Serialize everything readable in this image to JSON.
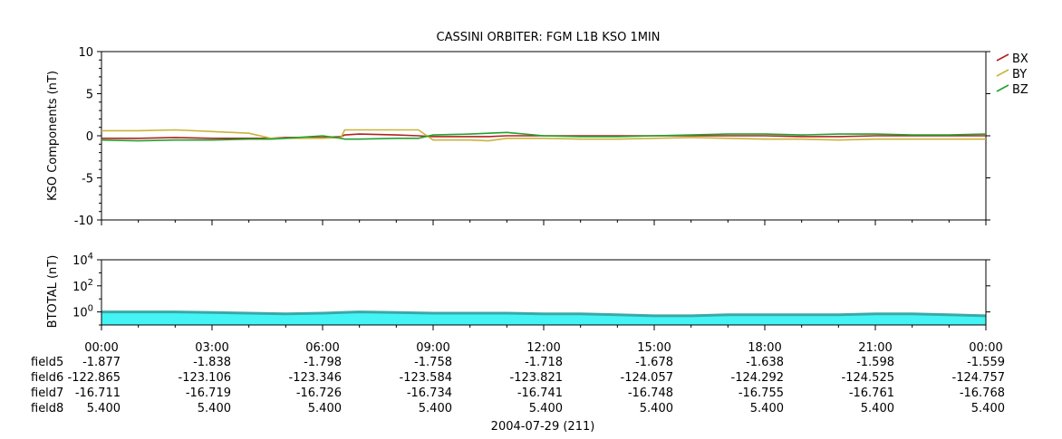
{
  "title": "CASSINI ORBITER: FGM L1B KSO 1MIN",
  "colors": {
    "BX": "#b22222",
    "BY": "#c8b43c",
    "BZ": "#22a22e",
    "btotal_fill": "#44f4f4",
    "btotal_line": "#3aa8a8"
  },
  "chart_data": [
    {
      "type": "line",
      "ylabel": "KSO Components (nT)",
      "ylim": [
        -10,
        10
      ],
      "yticks": [
        "10",
        "5",
        "0",
        "-5",
        "-10"
      ],
      "legend": {
        "placement": "right-top",
        "entries": [
          "BX",
          "BY",
          "BZ"
        ]
      },
      "x_hours": [
        0,
        1,
        2,
        3,
        4,
        4.6,
        5,
        6,
        6.5,
        6.6,
        7,
        8,
        8.6,
        9,
        10,
        10.5,
        11,
        12,
        13,
        14,
        15,
        16,
        17,
        18,
        19,
        20,
        21,
        22,
        23,
        24
      ],
      "series": [
        {
          "name": "BX",
          "values": [
            -0.3,
            -0.3,
            -0.2,
            -0.3,
            -0.3,
            -0.3,
            -0.2,
            -0.2,
            -0.1,
            0.1,
            0.2,
            0.1,
            0.0,
            -0.1,
            -0.1,
            -0.1,
            0.0,
            0.0,
            0.0,
            0.0,
            0.0,
            0.0,
            0.0,
            0.0,
            -0.1,
            -0.1,
            0.0,
            0.0,
            0.0,
            0.0
          ]
        },
        {
          "name": "BY",
          "values": [
            0.6,
            0.6,
            0.7,
            0.5,
            0.3,
            -0.3,
            -0.3,
            -0.3,
            -0.2,
            0.7,
            0.7,
            0.7,
            0.7,
            -0.5,
            -0.5,
            -0.6,
            -0.3,
            -0.3,
            -0.4,
            -0.4,
            -0.3,
            -0.2,
            -0.3,
            -0.4,
            -0.4,
            -0.5,
            -0.4,
            -0.4,
            -0.4,
            -0.4
          ]
        },
        {
          "name": "BZ",
          "values": [
            -0.5,
            -0.6,
            -0.5,
            -0.5,
            -0.4,
            -0.4,
            -0.3,
            0.0,
            -0.3,
            -0.4,
            -0.4,
            -0.3,
            -0.3,
            0.1,
            0.2,
            0.3,
            0.4,
            0.0,
            -0.1,
            -0.1,
            0.0,
            0.1,
            0.2,
            0.2,
            0.1,
            0.2,
            0.2,
            0.1,
            0.1,
            0.2
          ]
        }
      ]
    },
    {
      "type": "area",
      "ylabel": "BTOTAL (nT)",
      "yscale": "log",
      "ylim": [
        0.1,
        10000
      ],
      "yticks": [
        {
          "base": "10",
          "exp": "4"
        },
        {
          "base": "10",
          "exp": "2"
        },
        {
          "base": "10",
          "exp": "0"
        }
      ],
      "x_hours": [
        0,
        1,
        2,
        3,
        4,
        5,
        6,
        7,
        8,
        9,
        10,
        11,
        12,
        13,
        14,
        15,
        16,
        17,
        18,
        19,
        20,
        21,
        22,
        23,
        24
      ],
      "series": [
        {
          "name": "BTOTAL",
          "values": [
            1.0,
            1.0,
            1.0,
            0.9,
            0.8,
            0.7,
            0.8,
            1.0,
            0.9,
            0.8,
            0.8,
            0.8,
            0.7,
            0.7,
            0.6,
            0.5,
            0.5,
            0.6,
            0.6,
            0.6,
            0.6,
            0.7,
            0.7,
            0.6,
            0.5
          ]
        }
      ]
    }
  ],
  "xaxis": {
    "ticks": [
      "00:00",
      "03:00",
      "06:00",
      "09:00",
      "12:00",
      "15:00",
      "18:00",
      "21:00",
      "00:00"
    ],
    "rows": [
      {
        "label": "field5",
        "values": [
          "-1.877",
          "-1.838",
          "-1.798",
          "-1.758",
          "-1.718",
          "-1.678",
          "-1.638",
          "-1.598",
          "-1.559"
        ]
      },
      {
        "label": "field6",
        "values": [
          "-122.865",
          "-123.106",
          "-123.346",
          "-123.584",
          "-123.821",
          "-124.057",
          "-124.292",
          "-124.525",
          "-124.757"
        ]
      },
      {
        "label": "field7",
        "values": [
          "-16.711",
          "-16.719",
          "-16.726",
          "-16.734",
          "-16.741",
          "-16.748",
          "-16.755",
          "-16.761",
          "-16.768"
        ]
      },
      {
        "label": "field8",
        "values": [
          "5.400",
          "5.400",
          "5.400",
          "5.400",
          "5.400",
          "5.400",
          "5.400",
          "5.400",
          "5.400"
        ]
      }
    ],
    "date_label": "2004-07-29 (211)"
  }
}
